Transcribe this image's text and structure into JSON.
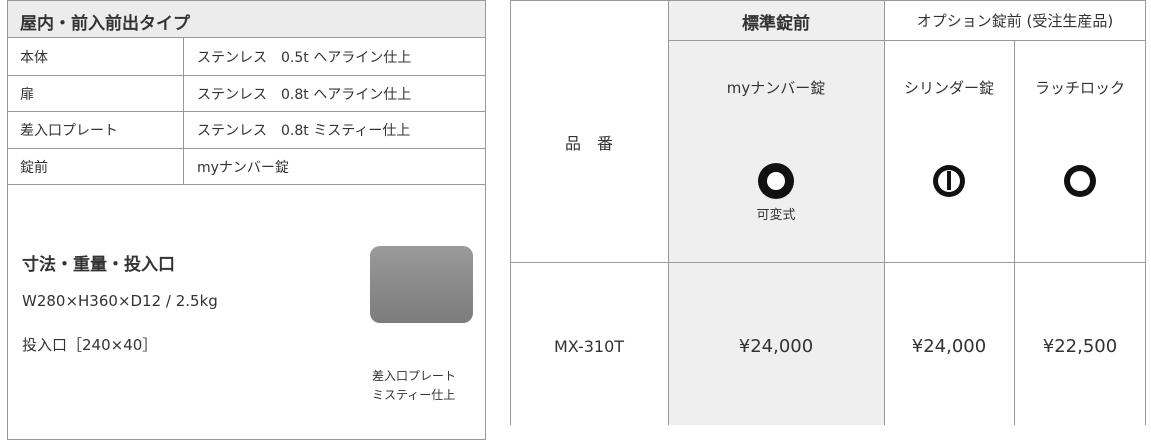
{
  "left": {
    "title": "屋内・前入前出タイプ",
    "rows": [
      [
        "本体",
        "ステンレス　0.5t ヘアライン仕上"
      ],
      [
        "扉",
        "ステンレス　0.8t ヘアライン仕上"
      ],
      [
        "差入口プレート",
        "ステンレス　0.8t ミスティー仕上"
      ],
      [
        "錠前",
        "myナンバー錠"
      ]
    ],
    "dimensions": {
      "title": "寸法・重量・投入口",
      "lines": [
        "W280×H360×D12 / 2.5kg",
        "投入口［240×40］"
      ],
      "caption": [
        "差入口プレート",
        "ミスティー仕上"
      ]
    }
  },
  "right": {
    "header": {
      "standard": "標準錠前",
      "option": "オプション錠前 (受注生産品)"
    },
    "label": "品　番",
    "locks": [
      "myナンバー錠",
      "シリンダー錠",
      "ラッチロック"
    ],
    "note": "可変式",
    "model": "MX-310T",
    "prices": [
      "¥24,000",
      "¥24,000",
      "¥22,500"
    ]
  }
}
